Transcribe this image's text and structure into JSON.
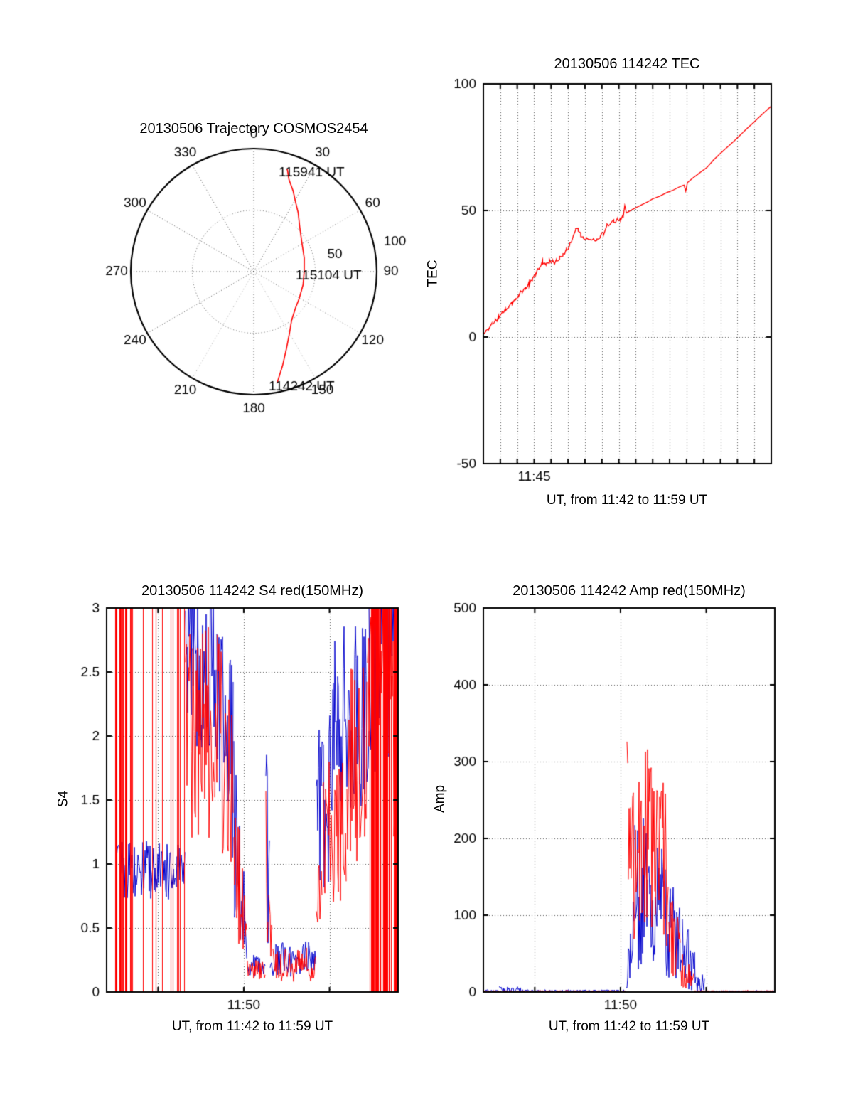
{
  "figure": {
    "background": "#ffffff"
  },
  "colors": {
    "red": "#ff0000",
    "blue": "#0000cc",
    "axis": "#000000",
    "grid": "#555555"
  },
  "chart_data": [
    {
      "id": "trajectory",
      "type": "polar-line",
      "title": "20130506 Trajectory COSMOS2454",
      "angle_tick_labels": [
        "0",
        "30",
        "60",
        "90",
        "120",
        "150",
        "180",
        "210",
        "240",
        "270",
        "300",
        "330"
      ],
      "radial_tick_labels": [
        {
          "label": "50",
          "r": 50
        },
        {
          "label": "100",
          "r": 100
        }
      ],
      "r_max": 100,
      "grid_circles": [
        50
      ],
      "annotations": [
        {
          "text": "115941 UT",
          "az": 18,
          "r": 88
        },
        {
          "text": "115104 UT",
          "az": 90,
          "r": 41
        },
        {
          "text": "114242 UT",
          "az": 168,
          "r": 92
        }
      ],
      "series": [
        {
          "name": "satellite-track",
          "color": "red",
          "points_az_r": [
            [
              168,
              92
            ],
            [
              163,
              80
            ],
            [
              157,
              68
            ],
            [
              150,
              58
            ],
            [
              142,
              50
            ],
            [
              131,
              45
            ],
            [
              121,
              43
            ],
            [
              105,
              41.5
            ],
            [
              90,
              41
            ],
            [
              75,
              42.5
            ],
            [
              58,
              46
            ],
            [
              46,
              52
            ],
            [
              37,
              60
            ],
            [
              31,
              66
            ],
            [
              26,
              73
            ],
            [
              21,
              80
            ],
            [
              18,
              88
            ]
          ]
        }
      ]
    },
    {
      "id": "tec",
      "type": "line",
      "title": "20130506 114242 TEC",
      "ylabel": "TEC",
      "xlabel": "UT, from 11:42 to 11:59 UT",
      "x_start_label": "11:42",
      "x_end_label": "11:59",
      "xlim": [
        0,
        17
      ],
      "ylim": [
        -50,
        100
      ],
      "yticks": [
        {
          "v": -50,
          "label": "-50"
        },
        {
          "v": 0,
          "label": "0"
        },
        {
          "v": 50,
          "label": "50"
        },
        {
          "v": 100,
          "label": "100"
        }
      ],
      "xticks": [
        {
          "v": 3,
          "label": "11:45"
        }
      ],
      "grid_x": [
        1,
        2,
        3,
        4,
        5,
        6,
        7,
        8,
        9,
        10,
        11,
        12,
        13,
        14,
        15,
        16
      ],
      "grid_y": [
        0,
        50
      ],
      "series": [
        {
          "name": "TEC",
          "color": "red",
          "noise_until": 8.3,
          "noise_amp": 1.0,
          "points": [
            [
              0,
              0
            ],
            [
              0.15,
              2
            ],
            [
              0.3,
              3.2
            ],
            [
              0.5,
              4.8
            ],
            [
              0.7,
              6.4
            ],
            [
              0.9,
              7.8
            ],
            [
              1.1,
              9.4
            ],
            [
              1.3,
              11
            ],
            [
              1.5,
              12.4
            ],
            [
              1.7,
              13.8
            ],
            [
              1.9,
              15
            ],
            [
              2.1,
              16.8
            ],
            [
              2.3,
              18.4
            ],
            [
              2.5,
              19.6
            ],
            [
              2.7,
              21
            ],
            [
              2.9,
              23
            ],
            [
              3.1,
              25.4
            ],
            [
              3.3,
              27.8
            ],
            [
              3.5,
              29.6
            ],
            [
              3.7,
              29
            ],
            [
              3.9,
              30
            ],
            [
              4.1,
              29.4
            ],
            [
              4.3,
              30
            ],
            [
              4.5,
              31
            ],
            [
              4.7,
              32.6
            ],
            [
              4.9,
              34
            ],
            [
              5.1,
              36.6
            ],
            [
              5.3,
              40
            ],
            [
              5.45,
              43
            ],
            [
              5.6,
              42
            ],
            [
              5.75,
              40.6
            ],
            [
              5.9,
              39.4
            ],
            [
              6.1,
              38.6
            ],
            [
              6.3,
              38
            ],
            [
              6.5,
              38.4
            ],
            [
              6.7,
              39
            ],
            [
              6.9,
              39.6
            ],
            [
              7.1,
              41
            ],
            [
              7.3,
              44
            ],
            [
              7.5,
              45.4
            ],
            [
              7.7,
              46
            ],
            [
              7.9,
              46
            ],
            [
              8.1,
              46.6
            ],
            [
              8.25,
              48
            ],
            [
              8.35,
              52
            ],
            [
              8.45,
              49
            ],
            [
              8.6,
              49.6
            ],
            [
              8.8,
              50.4
            ],
            [
              9.1,
              51.4
            ],
            [
              9.4,
              52.4
            ],
            [
              9.7,
              53.4
            ],
            [
              10,
              54.6
            ],
            [
              10.4,
              55.6
            ],
            [
              10.8,
              57
            ],
            [
              11.2,
              58
            ],
            [
              11.6,
              59.4
            ],
            [
              11.85,
              60
            ],
            [
              11.95,
              57.6
            ],
            [
              12.05,
              61
            ],
            [
              12.4,
              63
            ],
            [
              12.8,
              65
            ],
            [
              13.2,
              67
            ],
            [
              13.6,
              70
            ],
            [
              14,
              72.6
            ],
            [
              14.4,
              75
            ],
            [
              14.8,
              77.4
            ],
            [
              15.2,
              80
            ],
            [
              15.6,
              82.6
            ],
            [
              16,
              85
            ],
            [
              16.4,
              87.6
            ],
            [
              16.8,
              90
            ],
            [
              17,
              91.2
            ]
          ]
        }
      ]
    },
    {
      "id": "s4",
      "type": "noisy-line",
      "title": "20130506 114242 S4 red(150MHz)",
      "ylabel": "S4",
      "xlabel": "UT, from 11:42 to 11:59 UT",
      "x_start_label": "11:42",
      "x_end_label": "11:59",
      "xlim": [
        0,
        17
      ],
      "ylim": [
        0,
        3
      ],
      "yticks": [
        {
          "v": 0,
          "label": "0"
        },
        {
          "v": 0.5,
          "label": "0.5"
        },
        {
          "v": 1,
          "label": "1"
        },
        {
          "v": 1.5,
          "label": "1.5"
        },
        {
          "v": 2,
          "label": "2"
        },
        {
          "v": 2.5,
          "label": "2.5"
        },
        {
          "v": 3,
          "label": "3"
        }
      ],
      "xticks": [
        {
          "v": 8,
          "label": "11:50"
        }
      ],
      "grid_x": [
        3,
        8,
        13
      ],
      "grid_y": [
        0.5,
        1,
        1.5,
        2,
        2.5
      ],
      "series": [
        {
          "name": "S4-blue",
          "color": "blue",
          "segments": [
            {
              "t": [
                0.55,
                4.6
              ],
              "lo": 0.72,
              "hi": 1.18
            },
            {
              "t": [
                4.6,
                6.4
              ],
              "lo": 1.9,
              "hi": 3.35
            },
            {
              "t": [
                6.4,
                7.4
              ],
              "lo": 1.3,
              "hi": 3.1,
              "lo2": 1.0,
              "hi2": 2.5
            },
            {
              "t": [
                7.4,
                8.2
              ],
              "lo": 0.6,
              "hi": 2.0,
              "lo2": 0.15,
              "hi2": 0.6
            },
            {
              "t": [
                8.2,
                9.25
              ],
              "lo": 0.12,
              "hi": 0.3
            },
            {
              "t": [
                9.25,
                9.5
              ],
              "lo": 0.3,
              "hi": 1.9
            },
            {
              "t": [
                9.5,
                12.2
              ],
              "lo": 0.12,
              "hi": 0.4
            },
            {
              "t": [
                12.2,
                13.2
              ],
              "lo": 0.5,
              "hi": 2.0,
              "lo2": 0.9,
              "hi2": 2.4
            },
            {
              "t": [
                13.2,
                15.3
              ],
              "lo": 1.4,
              "hi": 2.9
            },
            {
              "t": [
                15.3,
                17
              ],
              "lo": 1.7,
              "hi": 3.35
            }
          ]
        },
        {
          "name": "S4-red-150MHz",
          "color": "red",
          "segments": [
            {
              "t": [
                0.3,
                1.2
              ],
              "mode": "bars",
              "lo": 0,
              "hi": 3,
              "density": 0.45
            },
            {
              "t": [
                1.2,
                3.9
              ],
              "mode": "bars",
              "lo": 0,
              "hi": 3,
              "density": 0.1
            },
            {
              "t": [
                3.9,
                4.6
              ],
              "mode": "bars",
              "lo": 0,
              "hi": 3,
              "density": 0.35
            },
            {
              "t": [
                4.6,
                6.3
              ],
              "lo": 1.2,
              "hi": 2.85
            },
            {
              "t": [
                6.3,
                7.4
              ],
              "lo": 1.1,
              "hi": 2.9,
              "lo2": 0.9,
              "hi2": 2.3
            },
            {
              "t": [
                7.4,
                8.2
              ],
              "lo": 0.5,
              "hi": 1.9,
              "lo2": 0.12,
              "hi2": 0.5
            },
            {
              "t": [
                8.2,
                9.25
              ],
              "lo": 0.1,
              "hi": 0.25
            },
            {
              "t": [
                9.25,
                9.45
              ],
              "lo": 0.3,
              "hi": 2.65
            },
            {
              "t": [
                9.45,
                9.7
              ],
              "lo": 0.2,
              "hi": 1.2
            },
            {
              "t": [
                9.7,
                12.2
              ],
              "lo": 0.08,
              "hi": 0.35
            },
            {
              "t": [
                12.2,
                12.6
              ],
              "lo": 0.2,
              "hi": 1.0
            },
            {
              "t": [
                12.6,
                14
              ],
              "lo": 0.6,
              "hi": 1.9
            },
            {
              "t": [
                14,
                15.2
              ],
              "lo": 0.9,
              "hi": 2.6
            },
            {
              "t": [
                15.2,
                17
              ],
              "mode": "bars",
              "lo": 0,
              "hi": 3,
              "density": 0.5
            },
            {
              "t": [
                15.2,
                17
              ],
              "lo": 1.2,
              "hi": 3.2
            }
          ]
        }
      ]
    },
    {
      "id": "amp",
      "type": "noisy-line",
      "title": "20130506 114242 Amp red(150MHz)",
      "ylabel": "Amp",
      "xlabel": "UT, from 11:42 to 11:59 UT",
      "x_start_label": "11:42",
      "x_end_label": "11:59",
      "xlim": [
        0,
        17
      ],
      "ylim": [
        0,
        500
      ],
      "yticks": [
        {
          "v": 0,
          "label": "0"
        },
        {
          "v": 100,
          "label": "100"
        },
        {
          "v": 200,
          "label": "200"
        },
        {
          "v": 300,
          "label": "300"
        },
        {
          "v": 400,
          "label": "400"
        },
        {
          "v": 500,
          "label": "500"
        }
      ],
      "xticks": [
        {
          "v": 8,
          "label": "11:50"
        }
      ],
      "grid_x": [
        3,
        8,
        13
      ],
      "grid_y": [
        100,
        200,
        300,
        400
      ],
      "series": [
        {
          "name": "Amp-blue",
          "color": "blue",
          "segments": [
            {
              "t": [
                0,
                0.9
              ],
              "lo": 0,
              "hi": 3
            },
            {
              "t": [
                0.9,
                2.2
              ],
              "lo": 0,
              "hi": 7
            },
            {
              "t": [
                2.2,
                8.3
              ],
              "lo": 0,
              "hi": 3
            },
            {
              "t": [
                8.3,
                8.8
              ],
              "lo": 0,
              "hi": 40,
              "lo2": 10,
              "hi2": 130
            },
            {
              "t": [
                8.8,
                9.6
              ],
              "lo": 20,
              "hi": 230
            },
            {
              "t": [
                9.6,
                10.6
              ],
              "lo": 30,
              "hi": 220
            },
            {
              "t": [
                10.6,
                11.6
              ],
              "lo": 20,
              "hi": 170,
              "lo2": 10,
              "hi2": 120
            },
            {
              "t": [
                11.6,
                12.4
              ],
              "lo": 5,
              "hi": 110,
              "lo2": 0,
              "hi2": 60
            },
            {
              "t": [
                12.4,
                12.9
              ],
              "lo": 0,
              "hi": 25
            },
            {
              "t": [
                12.9,
                17
              ],
              "lo": 0,
              "hi": 2
            }
          ]
        },
        {
          "name": "Amp-red-150MHz",
          "color": "red",
          "segments": [
            {
              "t": [
                0,
                8.3
              ],
              "lo": 0,
              "hi": 2
            },
            {
              "t": [
                8.3,
                8.36
              ],
              "lo": 0,
              "hi": 120
            },
            {
              "t": [
                8.36,
                8.44
              ],
              "lo": 120,
              "hi": 432
            },
            {
              "t": [
                8.44,
                8.6
              ],
              "lo": 60,
              "hi": 260
            },
            {
              "t": [
                8.6,
                9.3
              ],
              "lo": 60,
              "hi": 285
            },
            {
              "t": [
                9.3,
                10
              ],
              "lo": 80,
              "hi": 320
            },
            {
              "t": [
                10,
                10.8
              ],
              "lo": 60,
              "hi": 280
            },
            {
              "t": [
                10.8,
                11.5
              ],
              "lo": 20,
              "hi": 170,
              "lo2": 10,
              "hi2": 80
            },
            {
              "t": [
                11.5,
                12.3
              ],
              "lo": 5,
              "hi": 60,
              "lo2": 0,
              "hi2": 25
            },
            {
              "t": [
                12.3,
                17
              ],
              "lo": 0,
              "hi": 2
            }
          ]
        }
      ]
    }
  ]
}
